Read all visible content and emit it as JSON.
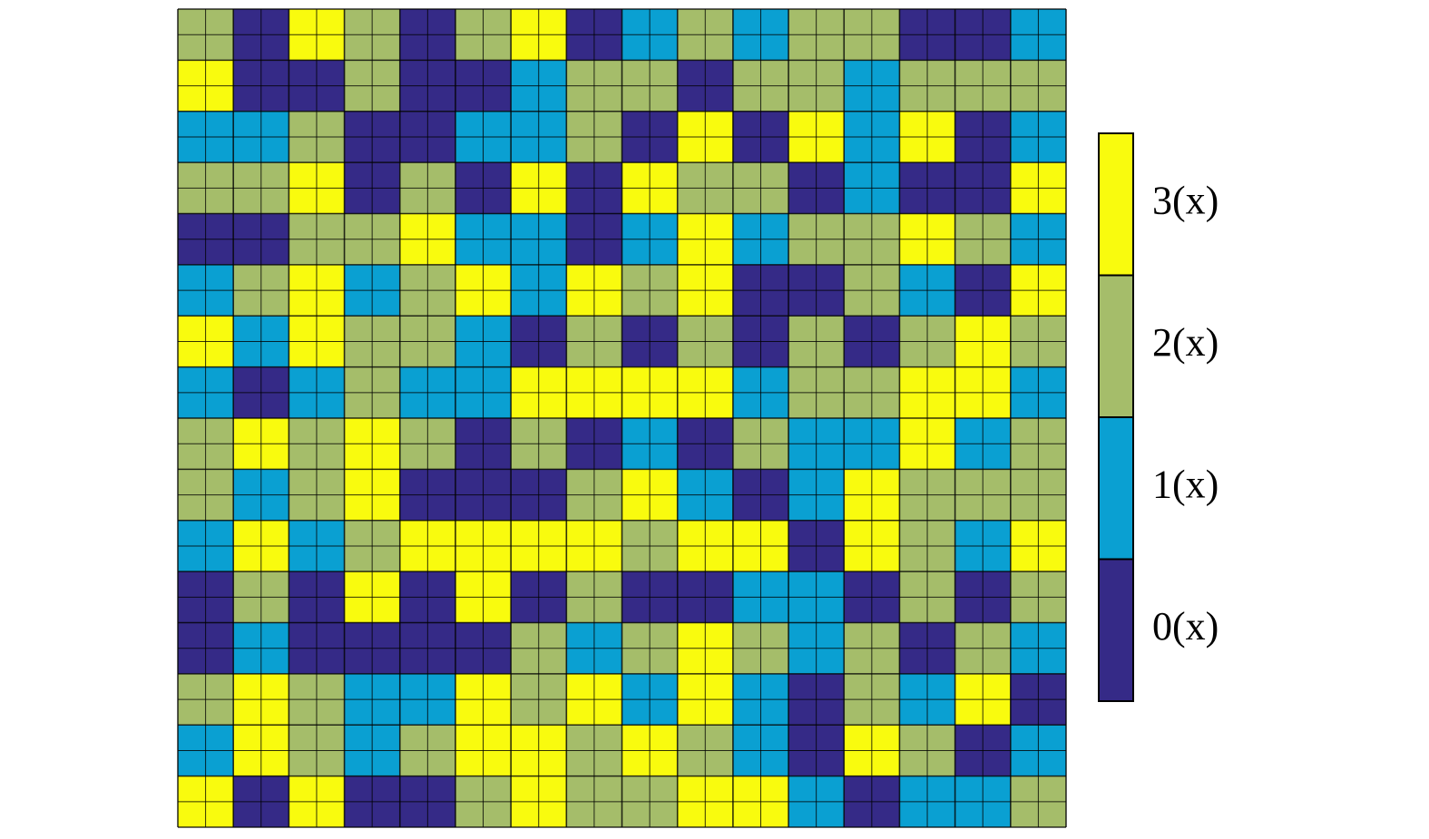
{
  "chart_data": {
    "type": "heatmap",
    "colors": [
      "#352a87",
      "#0aa0d2",
      "#a5bd6a",
      "#f9fb0e"
    ],
    "z": [
      [
        2,
        0,
        3,
        2,
        0,
        2,
        3,
        0,
        1,
        2,
        1,
        2,
        2,
        0,
        0,
        1
      ],
      [
        3,
        0,
        0,
        2,
        0,
        0,
        1,
        2,
        2,
        0,
        2,
        2,
        1,
        2,
        2,
        2
      ],
      [
        1,
        1,
        2,
        0,
        0,
        1,
        1,
        2,
        0,
        3,
        0,
        3,
        1,
        3,
        0,
        1
      ],
      [
        2,
        2,
        3,
        0,
        2,
        0,
        3,
        0,
        3,
        2,
        2,
        0,
        1,
        0,
        0,
        3
      ],
      [
        0,
        0,
        2,
        2,
        3,
        1,
        1,
        0,
        1,
        3,
        1,
        2,
        2,
        3,
        2,
        1
      ],
      [
        1,
        2,
        3,
        1,
        2,
        3,
        1,
        3,
        2,
        3,
        0,
        0,
        2,
        1,
        0,
        3
      ],
      [
        3,
        1,
        3,
        2,
        2,
        1,
        0,
        2,
        0,
        2,
        0,
        2,
        0,
        2,
        3,
        2
      ],
      [
        1,
        0,
        1,
        2,
        1,
        1,
        3,
        3,
        3,
        3,
        1,
        2,
        2,
        3,
        3,
        1
      ],
      [
        2,
        3,
        2,
        3,
        2,
        0,
        2,
        0,
        1,
        0,
        2,
        1,
        1,
        3,
        1,
        2
      ],
      [
        2,
        1,
        2,
        3,
        0,
        0,
        0,
        2,
        3,
        1,
        0,
        1,
        3,
        2,
        2,
        2
      ],
      [
        1,
        3,
        1,
        2,
        3,
        3,
        3,
        3,
        2,
        3,
        3,
        0,
        3,
        2,
        1,
        3
      ],
      [
        0,
        2,
        0,
        3,
        0,
        3,
        0,
        2,
        0,
        0,
        1,
        1,
        0,
        2,
        0,
        2
      ],
      [
        0,
        1,
        0,
        0,
        0,
        0,
        2,
        1,
        2,
        3,
        2,
        1,
        2,
        0,
        2,
        1
      ],
      [
        2,
        3,
        2,
        1,
        1,
        3,
        2,
        3,
        1,
        3,
        1,
        0,
        2,
        1,
        3,
        0
      ],
      [
        1,
        3,
        2,
        1,
        2,
        3,
        3,
        2,
        3,
        2,
        1,
        0,
        3,
        2,
        0,
        1
      ],
      [
        3,
        0,
        3,
        0,
        0,
        2,
        3,
        2,
        2,
        3,
        3,
        1,
        0,
        1,
        1,
        2
      ]
    ],
    "cticks": [
      {
        "value": 0,
        "label": "0(x)"
      },
      {
        "value": 1,
        "label": "1(x)"
      },
      {
        "value": 2,
        "label": "2(x)"
      },
      {
        "value": 3,
        "label": "3(x)"
      }
    ]
  }
}
